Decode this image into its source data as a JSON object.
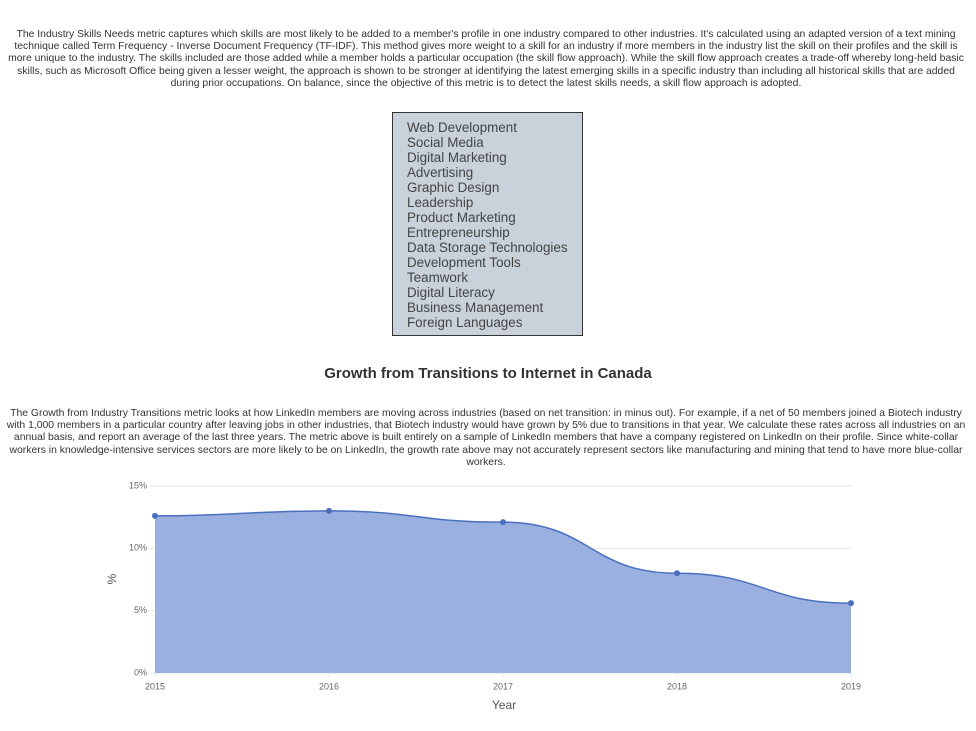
{
  "skills_section": {
    "description": "The Industry Skills Needs metric captures which skills are most likely to be added to a member's profile in one industry compared to other industries. It's calculated using an adapted version of a text mining technique called Term Frequency - Inverse Document Frequency (TF-IDF). This method gives more weight to a skill for an industry if more members in the industry list the skill on their profiles and the skill is more unique to the industry. The skills included are those added while a member holds a particular occupation (the skill flow approach). While the skill flow approach creates a trade-off whereby long-held basic skills, such as Microsoft Office being given a lesser weight, the approach is shown to be stronger at identifying the latest emerging skills in a specific industry than including all historical skills that are added during prior occupations. On balance, since the objective of this metric is to detect the latest skills needs, a skill flow approach is adopted.",
    "skills": [
      "Web Development",
      "Social Media",
      "Digital Marketing",
      "Advertising",
      "Graphic Design",
      "Leadership",
      "Product Marketing",
      "Entrepreneurship",
      "Data Storage Technologies",
      "Development Tools",
      "Teamwork",
      "Digital Literacy",
      "Business Management",
      "Foreign Languages"
    ]
  },
  "growth_section": {
    "title": "Growth from Transitions to Internet in Canada",
    "description": "The Growth from Industry Transitions metric looks at how LinkedIn members are moving across industries (based on net transition: in minus out). For example, if a net of 50 members joined a Biotech industry with 1,000 members in a particular country after leaving jobs in other industries, that Biotech industry would have grown by 5% due to transitions in that year. We calculate these rates across all industries on an annual basis, and report an average of the last three years. The metric above is built entirely on a sample of LinkedIn members that have a company registered on LinkedIn on their profile. Since white-collar workers in knowledge-intensive services sectors are more likely to be on LinkedIn, the growth rate above may not accurately represent sectors like manufacturing and mining that tend to have more blue-collar workers."
  },
  "chart_data": {
    "type": "area",
    "x_label": "Year",
    "y_label": "%",
    "x": [
      2015,
      2016,
      2017,
      2018,
      2019
    ],
    "values": [
      12.6,
      13.0,
      12.1,
      8.0,
      5.6
    ],
    "color": "#4a6fbf",
    "fill": "#9ab0e0",
    "xlim": [
      2015,
      2019
    ],
    "xticks": [
      2015,
      2016,
      2017,
      2018,
      2019
    ],
    "ylim": [
      0,
      15
    ],
    "yticks": [
      {
        "value": 0,
        "label": "0%"
      },
      {
        "value": 5,
        "label": "5%"
      },
      {
        "value": 10,
        "label": "10%"
      },
      {
        "value": 15,
        "label": "15%"
      }
    ],
    "grid": true
  }
}
